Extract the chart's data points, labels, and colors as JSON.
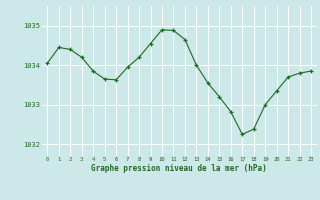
{
  "x": [
    0,
    1,
    2,
    3,
    4,
    5,
    6,
    7,
    8,
    9,
    10,
    11,
    12,
    13,
    14,
    15,
    16,
    17,
    18,
    19,
    20,
    21,
    22,
    23
  ],
  "y": [
    1034.05,
    1034.45,
    1034.4,
    1034.2,
    1033.85,
    1033.65,
    1033.63,
    1033.95,
    1034.2,
    1034.55,
    1034.9,
    1034.88,
    1034.65,
    1034.0,
    1033.55,
    1033.2,
    1032.82,
    1032.25,
    1032.38,
    1033.0,
    1033.35,
    1033.7,
    1033.8,
    1033.85
  ],
  "ylim": [
    1031.7,
    1035.5
  ],
  "yticks": [
    1032,
    1033,
    1034,
    1035
  ],
  "xticks": [
    0,
    1,
    2,
    3,
    4,
    5,
    6,
    7,
    8,
    9,
    10,
    11,
    12,
    13,
    14,
    15,
    16,
    17,
    18,
    19,
    20,
    21,
    22,
    23
  ],
  "line_color": "#1e6b1e",
  "marker_color": "#1e6b1e",
  "bg_color": "#cce8e8",
  "grid_color": "#ffffff",
  "xlabel": "Graphe pression niveau de la mer (hPa)",
  "xlabel_color": "#1e6b1e",
  "tick_color": "#1e6b1e",
  "ytick_label_color": "#1e6b1e"
}
